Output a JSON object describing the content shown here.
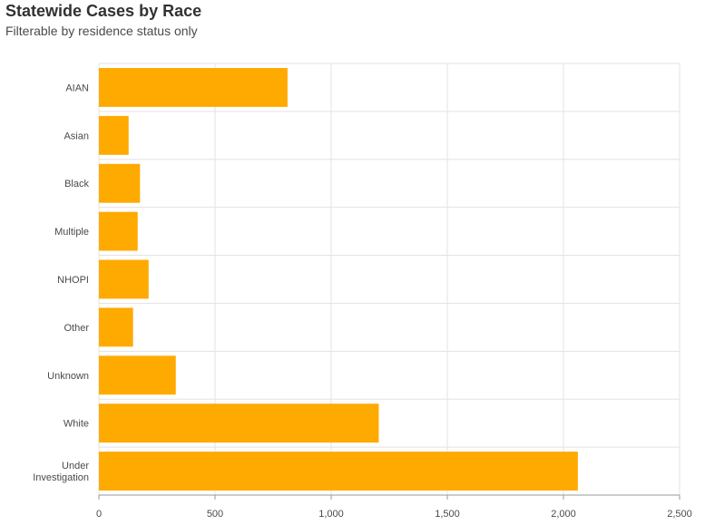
{
  "header": {
    "title": "Statewide Cases by Race",
    "subtitle": "Filterable by residence status only"
  },
  "chart_data": {
    "type": "bar",
    "orientation": "horizontal",
    "title": "Statewide Cases by Race",
    "subtitle": "Filterable by residence status only",
    "categories": [
      "AIAN",
      "Asian",
      "Black",
      "Multiple",
      "NHOPI",
      "Other",
      "Unknown",
      "White",
      "Under Investigation"
    ],
    "category_lines": [
      [
        "AIAN"
      ],
      [
        "Asian"
      ],
      [
        "Black"
      ],
      [
        "Multiple"
      ],
      [
        "NHOPI"
      ],
      [
        "Other"
      ],
      [
        "Unknown"
      ],
      [
        "White"
      ],
      [
        "Under",
        "Investigation"
      ]
    ],
    "values": [
      812,
      128,
      177,
      167,
      214,
      147,
      331,
      1205,
      2062
    ],
    "xlim": [
      0,
      2500
    ],
    "xticks": [
      0,
      500,
      1000,
      1500,
      2000,
      2500
    ],
    "xtick_labels": [
      "0",
      "500",
      "1,000",
      "1,500",
      "2,000",
      "2,500"
    ],
    "bar_color": "#FFAA00",
    "grid": true,
    "legend": "none"
  }
}
